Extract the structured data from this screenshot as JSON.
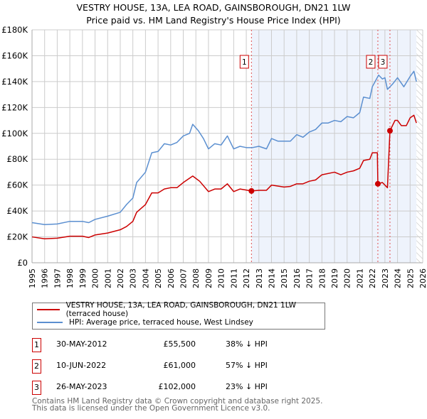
{
  "title_line1": "VESTRY HOUSE, 13A, LEA ROAD, GAINSBOROUGH, DN21 1LW",
  "title_line2": "Price paid vs. HM Land Registry's House Price Index (HPI)",
  "chart_data": {
    "type": "line",
    "xlim": [
      1995,
      2026
    ],
    "ylim": [
      0,
      180000
    ],
    "yticks": [
      0,
      20000,
      40000,
      60000,
      80000,
      100000,
      120000,
      140000,
      160000,
      180000
    ],
    "ytick_labels": [
      "£0",
      "£20K",
      "£40K",
      "£60K",
      "£80K",
      "£100K",
      "£120K",
      "£140K",
      "£160K",
      "£180K"
    ],
    "xticks": [
      1995,
      1996,
      1997,
      1998,
      1999,
      2000,
      2001,
      2002,
      2003,
      2004,
      2005,
      2006,
      2007,
      2008,
      2009,
      2010,
      2011,
      2012,
      2013,
      2014,
      2015,
      2016,
      2017,
      2018,
      2019,
      2020,
      2021,
      2022,
      2023,
      2024,
      2025,
      2026
    ],
    "grid": true,
    "colors": {
      "property": "#cc0000",
      "hpi": "#5b8fd0",
      "shade": "#eef3fc"
    },
    "shaded_range": [
      2012.41,
      2025.5
    ],
    "hatched_range": [
      2025.5,
      2026
    ],
    "series": [
      {
        "name": "VESTRY HOUSE, 13A, LEA ROAD, GAINSBOROUGH, DN21 1LW (terraced house)",
        "x": [
          1995,
          1996,
          1997,
          1998,
          1999,
          1999.5,
          2000,
          2001,
          2002,
          2002.5,
          2003,
          2003.3,
          2004,
          2004.5,
          2005,
          2005.5,
          2006,
          2006.5,
          2007,
          2007.75,
          2008.3,
          2009,
          2009.5,
          2010,
          2010.5,
          2011,
          2011.5,
          2012.41,
          2013,
          2013.6,
          2014,
          2015,
          2015.5,
          2016,
          2016.5,
          2017,
          2017.5,
          2018,
          2019,
          2019.5,
          2020,
          2020.5,
          2021,
          2021.3,
          2021.8,
          2022,
          2022.4,
          2022.44,
          2022.8,
          2023.2,
          2023.4,
          2023.8,
          2024,
          2024.3,
          2024.7,
          2025,
          2025.3,
          2025.5
        ],
        "y": [
          20000,
          18500,
          19000,
          20500,
          20500,
          19500,
          21500,
          23000,
          25500,
          28000,
          32000,
          39000,
          45000,
          54000,
          54000,
          57000,
          58000,
          58000,
          62000,
          67000,
          63000,
          55000,
          57000,
          57000,
          61000,
          55000,
          57000,
          55500,
          56000,
          56000,
          60000,
          58500,
          59000,
          61000,
          61000,
          63000,
          64000,
          68000,
          70000,
          68000,
          70000,
          71000,
          73000,
          79000,
          80000,
          85000,
          85000,
          61000,
          62000,
          58000,
          102000,
          110000,
          110000,
          106000,
          106000,
          112000,
          114000,
          108000
        ]
      },
      {
        "name": "HPI: Average price, terraced house, West Lindsey",
        "x": [
          1995,
          1996,
          1997,
          1998,
          1999,
          1999.5,
          2000,
          2001,
          2002,
          2002.5,
          2003,
          2003.3,
          2004,
          2004.5,
          2005,
          2005.5,
          2006,
          2006.5,
          2007,
          2007.5,
          2007.75,
          2008.2,
          2008.6,
          2009,
          2009.5,
          2010,
          2010.5,
          2011,
          2011.5,
          2012,
          2012.5,
          2013,
          2013.6,
          2014,
          2014.5,
          2015,
          2015.5,
          2016,
          2016.5,
          2017,
          2017.5,
          2018,
          2018.5,
          2019,
          2019.5,
          2020,
          2020.5,
          2021,
          2021.3,
          2021.8,
          2022,
          2022.5,
          2022.8,
          2023,
          2023.2,
          2023.6,
          2024,
          2024.5,
          2025,
          2025.3,
          2025.5
        ],
        "y": [
          31000,
          29500,
          30000,
          32000,
          32000,
          31000,
          33500,
          36000,
          39000,
          45000,
          50000,
          62000,
          70000,
          85000,
          86000,
          92000,
          91000,
          93000,
          98000,
          100000,
          107000,
          102000,
          96000,
          88000,
          92000,
          91000,
          98000,
          88000,
          90000,
          89000,
          89000,
          90000,
          88000,
          96000,
          94000,
          94000,
          94000,
          99000,
          97000,
          101000,
          103000,
          108000,
          108000,
          110000,
          109000,
          113000,
          112000,
          116000,
          128000,
          127000,
          136000,
          145000,
          142000,
          143000,
          134000,
          138000,
          143000,
          136000,
          144000,
          148000,
          140000
        ]
      }
    ],
    "sales": [
      {
        "label": "1",
        "x": 2012.41,
        "y": 55500
      },
      {
        "label": "2",
        "x": 2022.44,
        "y": 61000
      },
      {
        "label": "3",
        "x": 2023.4,
        "y": 102000
      }
    ]
  },
  "legend": {
    "property_label": "VESTRY HOUSE, 13A, LEA ROAD, GAINSBOROUGH, DN21 1LW (terraced house)",
    "hpi_label": "HPI: Average price, terraced house, West Lindsey"
  },
  "transactions": [
    {
      "num": "1",
      "date": "30-MAY-2012",
      "price": "£55,500",
      "hpi": "38% ↓ HPI"
    },
    {
      "num": "2",
      "date": "10-JUN-2022",
      "price": "£61,000",
      "hpi": "57% ↓ HPI"
    },
    {
      "num": "3",
      "date": "26-MAY-2023",
      "price": "£102,000",
      "hpi": "23% ↓ HPI"
    }
  ],
  "footer_line1": "Contains HM Land Registry data © Crown copyright and database right 2025.",
  "footer_line2": "This data is licensed under the Open Government Licence v3.0."
}
